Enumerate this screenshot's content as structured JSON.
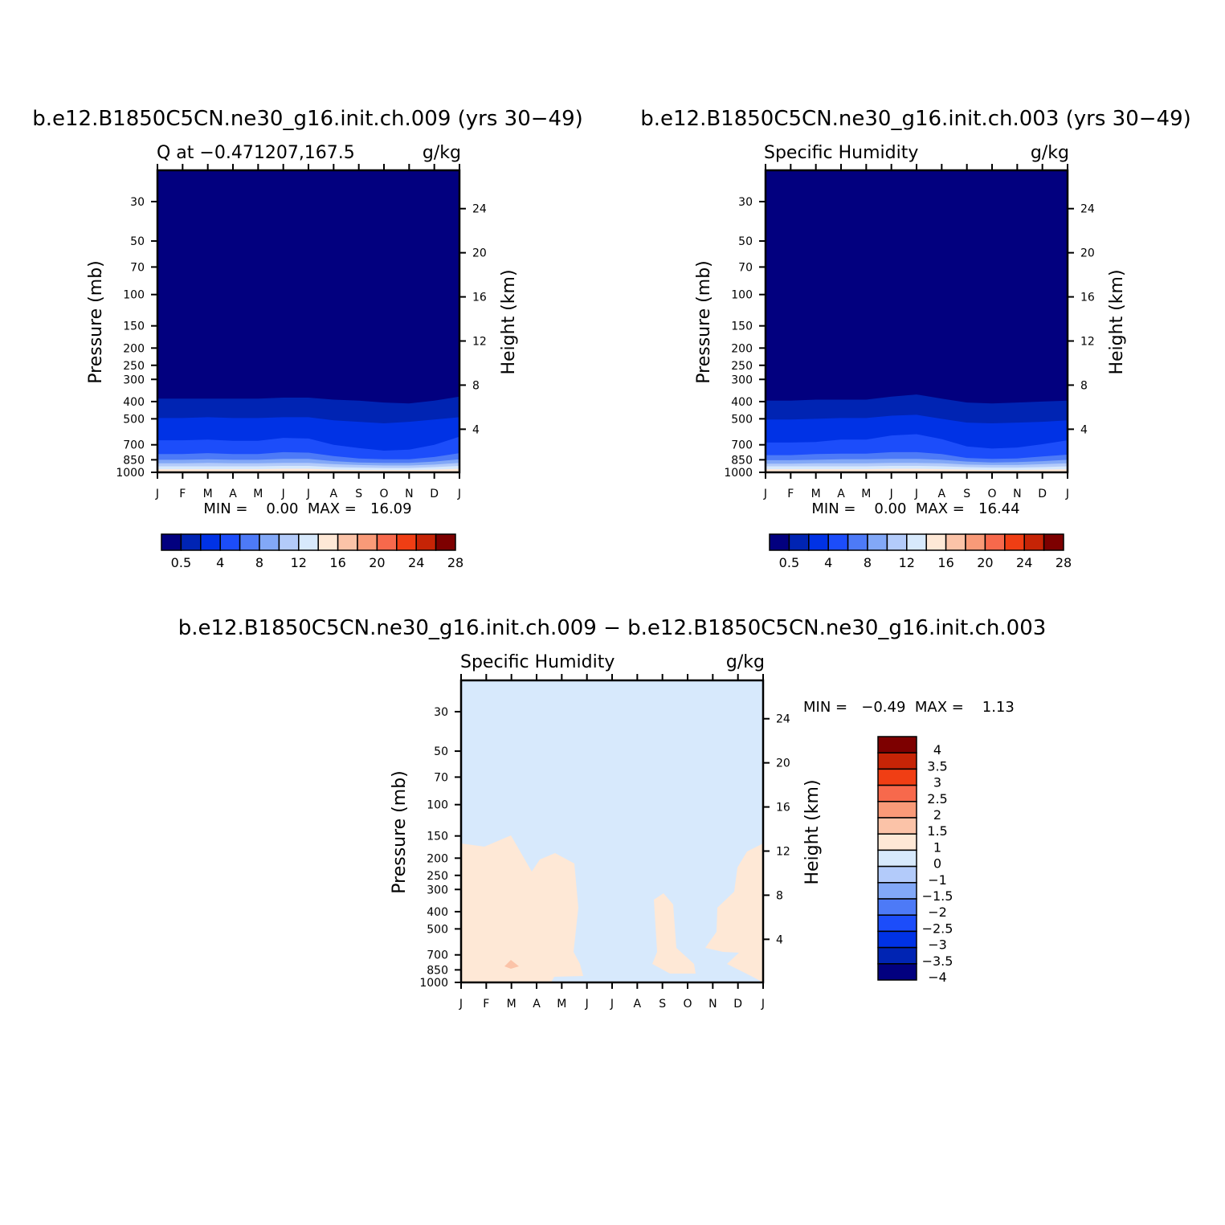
{
  "colors": {
    "bg": "#ffffff",
    "axis": "#000000",
    "diff_background": "#d7e9fc",
    "diff_positive": "#fee8d6",
    "diff_peak": "#fbc3a8"
  },
  "panels": [
    {
      "title": "b.e12.B1850C5CN.ne30_g16.init.ch.009 (yrs 30−49)",
      "left_label": "Q at −0.471207,167.5",
      "units": "g/kg",
      "ylabel": "Pressure (mb)",
      "y2label": "Height (km)",
      "stats": "MIN =    0.00  MAX =   16.09"
    },
    {
      "title": "b.e12.B1850C5CN.ne30_g16.init.ch.003 (yrs 30−49)",
      "left_label": "Specific Humidity",
      "units": "g/kg",
      "ylabel": "Pressure (mb)",
      "y2label": "Height (km)",
      "stats": "MIN =    0.00  MAX =   16.44"
    },
    {
      "title": "b.e12.B1850C5CN.ne30_g16.init.ch.009 − b.e12.B1850C5CN.ne30_g16.init.ch.003",
      "left_label": "Specific Humidity",
      "units": "g/kg",
      "ylabel": "Pressure (mb)",
      "y2label": "Height (km)",
      "stats": "MIN =   −0.49  MAX =    1.13"
    }
  ],
  "chart_data": [
    {
      "type": "heatmap",
      "x_tick_labels": [
        "J",
        "F",
        "M",
        "A",
        "M",
        "J",
        "J",
        "A",
        "S",
        "O",
        "N",
        "D",
        "J"
      ],
      "y_ticks": [
        30,
        50,
        70,
        100,
        150,
        200,
        250,
        300,
        400,
        500,
        700,
        850,
        1000
      ],
      "y_scale": "log",
      "ylim": [
        20,
        1000
      ],
      "y2_ticks": [
        24,
        20,
        16,
        12,
        8,
        4
      ],
      "contour_levels_hpa": [
        [
          385,
          385,
          385,
          385,
          385,
          380,
          380,
          390,
          395,
          405,
          410,
          395,
          375
        ],
        [
          495,
          495,
          490,
          495,
          495,
          490,
          490,
          510,
          520,
          530,
          520,
          505,
          490
        ],
        [
          660,
          660,
          655,
          665,
          665,
          640,
          645,
          700,
          730,
          755,
          745,
          700,
          630
        ],
        [
          790,
          790,
          780,
          790,
          790,
          770,
          775,
          810,
          835,
          845,
          845,
          820,
          780
        ],
        [
          850,
          850,
          845,
          850,
          850,
          840,
          840,
          865,
          880,
          885,
          885,
          870,
          845
        ],
        [
          890,
          890,
          885,
          890,
          890,
          885,
          885,
          900,
          910,
          915,
          915,
          905,
          885
        ],
        [
          925,
          925,
          925,
          925,
          925,
          920,
          920,
          935,
          940,
          945,
          945,
          935,
          920
        ],
        [
          960,
          960,
          960,
          960,
          960,
          955,
          955,
          965,
          970,
          970,
          970,
          965,
          955
        ]
      ],
      "colorbar": {
        "labels": [
          "0.5",
          "4",
          "8",
          "12",
          "16",
          "20",
          "24",
          "28"
        ],
        "colors": [
          "#02007f",
          "#0024b3",
          "#0032e5",
          "#1c4dfa",
          "#4d7af7",
          "#82a8f7",
          "#b3cbfa",
          "#d7e9fc",
          "#fee8d6",
          "#fbc3a8",
          "#f99a78",
          "#f7694c",
          "#f03e14",
          "#c62406",
          "#7d0000"
        ]
      },
      "min": 0.0,
      "max": 16.09
    },
    {
      "type": "heatmap",
      "x_tick_labels": [
        "J",
        "F",
        "M",
        "A",
        "M",
        "J",
        "J",
        "A",
        "S",
        "O",
        "N",
        "D",
        "J"
      ],
      "y_ticks": [
        30,
        50,
        70,
        100,
        150,
        200,
        250,
        300,
        400,
        500,
        700,
        850,
        1000
      ],
      "y_scale": "log",
      "ylim": [
        20,
        1000
      ],
      "y2_ticks": [
        24,
        20,
        16,
        12,
        8,
        4
      ],
      "contour_levels_hpa": [
        [
          395,
          395,
          390,
          390,
          390,
          375,
          365,
          385,
          405,
          410,
          405,
          400,
          395
        ],
        [
          505,
          505,
          500,
          495,
          495,
          480,
          475,
          500,
          525,
          530,
          525,
          520,
          510
        ],
        [
          680,
          680,
          675,
          655,
          655,
          620,
          610,
          650,
          715,
          735,
          725,
          695,
          660
        ],
        [
          800,
          800,
          790,
          785,
          785,
          770,
          770,
          790,
          830,
          840,
          835,
          815,
          795
        ],
        [
          855,
          855,
          850,
          845,
          845,
          840,
          840,
          850,
          870,
          880,
          875,
          865,
          850
        ],
        [
          895,
          895,
          890,
          890,
          890,
          885,
          885,
          890,
          905,
          910,
          910,
          900,
          890
        ],
        [
          925,
          925,
          925,
          925,
          925,
          920,
          920,
          925,
          935,
          940,
          940,
          935,
          925
        ],
        [
          960,
          960,
          960,
          960,
          960,
          955,
          955,
          960,
          965,
          970,
          970,
          965,
          960
        ]
      ],
      "colorbar": {
        "labels": [
          "0.5",
          "4",
          "8",
          "12",
          "16",
          "20",
          "24",
          "28"
        ],
        "colors": [
          "#02007f",
          "#0024b3",
          "#0032e5",
          "#1c4dfa",
          "#4d7af7",
          "#82a8f7",
          "#b3cbfa",
          "#d7e9fc",
          "#fee8d6",
          "#fbc3a8",
          "#f99a78",
          "#f7694c",
          "#f03e14",
          "#c62406",
          "#7d0000"
        ]
      },
      "min": 0.0,
      "max": 16.44
    },
    {
      "type": "heatmap",
      "x_tick_labels": [
        "J",
        "F",
        "M",
        "A",
        "M",
        "J",
        "J",
        "A",
        "S",
        "O",
        "N",
        "D",
        "J"
      ],
      "y_ticks": [
        30,
        50,
        70,
        100,
        150,
        200,
        250,
        300,
        400,
        500,
        700,
        850,
        1000
      ],
      "y_scale": "log",
      "ylim": [
        20,
        1000
      ],
      "y2_ticks": [
        24,
        20,
        16,
        12,
        8,
        4
      ],
      "colorbar": {
        "labels": [
          "4",
          "3.5",
          "3",
          "2.5",
          "2",
          "1.5",
          "1",
          "0",
          "−1",
          "−1.5",
          "−2",
          "−2.5",
          "−3",
          "−3.5",
          "−4"
        ],
        "colors": [
          "#7d0000",
          "#c62406",
          "#f03e14",
          "#f7694c",
          "#f99a78",
          "#fbc3a8",
          "#fee8d6",
          "#d7e9fc",
          "#b3cbfa",
          "#82a8f7",
          "#4d7af7",
          "#1c4dfa",
          "#0032e5",
          "#0024b3",
          "#02007f"
        ]
      },
      "min": -0.49,
      "max": 1.13
    }
  ]
}
